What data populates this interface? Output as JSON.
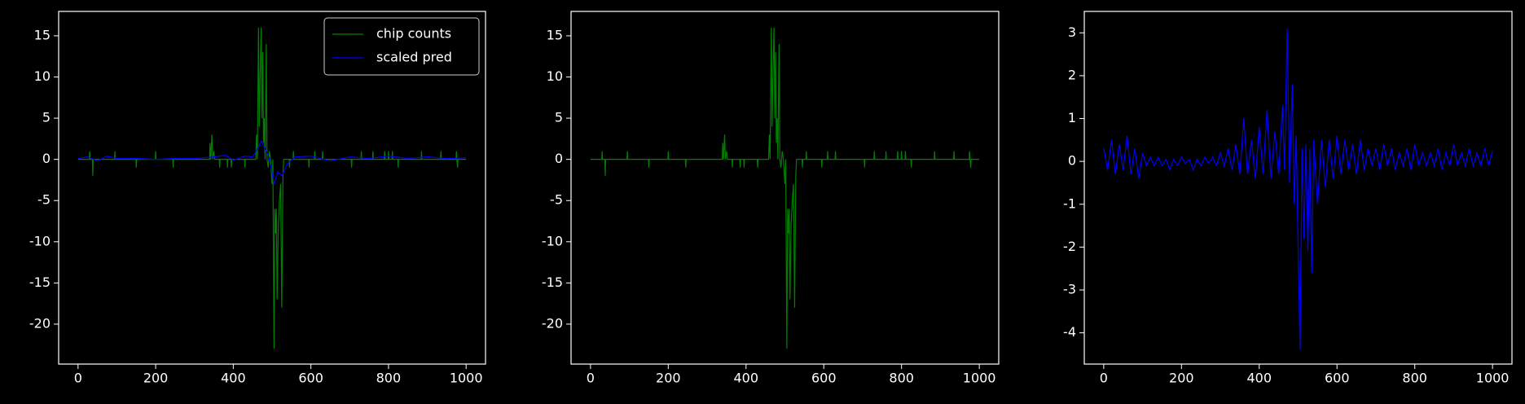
{
  "chart_data": [
    {
      "type": "line",
      "xlim": [
        -50,
        1050
      ],
      "ylim": [
        -24.85,
        17.96
      ],
      "xticks": [
        0,
        200,
        400,
        600,
        800,
        1000
      ],
      "yticks": [
        -20,
        -15,
        -10,
        -5,
        0,
        5,
        10,
        15
      ],
      "legend": "upper right",
      "series": [
        {
          "name": "chip counts",
          "color": "#008000",
          "x": [
            0,
            29,
            30,
            31,
            37,
            38,
            39,
            94,
            95,
            96,
            149,
            150,
            151,
            199,
            200,
            201,
            244,
            245,
            246,
            339,
            340,
            342,
            345,
            347,
            350,
            352,
            364,
            365,
            366,
            384,
            385,
            386,
            394,
            395,
            396,
            429,
            430,
            431,
            458,
            460,
            462,
            465,
            467,
            470,
            472,
            474,
            476,
            478,
            480,
            482,
            485,
            487,
            490,
            493,
            496,
            500,
            502,
            505,
            507,
            509,
            511,
            513,
            516,
            519,
            522,
            525,
            528,
            530,
            544,
            545,
            546,
            554,
            555,
            556,
            594,
            595,
            596,
            609,
            610,
            611,
            629,
            630,
            631,
            704,
            705,
            706,
            729,
            730,
            731,
            759,
            760,
            761,
            789,
            790,
            791,
            799,
            800,
            801,
            809,
            810,
            811,
            824,
            825,
            826,
            884,
            885,
            886,
            934,
            935,
            936,
            974,
            975,
            976,
            978,
            979,
            1000
          ],
          "values": [
            0,
            0,
            1,
            0,
            0,
            -2,
            0,
            0,
            1,
            0,
            0,
            -1,
            0,
            0,
            1,
            0,
            0,
            -1,
            0,
            0,
            2,
            0,
            3,
            0,
            1,
            0,
            0,
            -1,
            0,
            0,
            -1,
            0,
            0,
            -1,
            0,
            0,
            -1,
            0,
            0,
            3,
            0,
            16,
            4,
            12,
            16,
            5,
            13,
            2,
            5,
            0,
            14,
            0,
            -1,
            1,
            0,
            -3,
            0,
            -23,
            -6,
            -9,
            -6,
            -17,
            -8,
            -5,
            -3,
            -18,
            -2,
            0,
            0,
            -1,
            0,
            0,
            1,
            0,
            0,
            -1,
            0,
            0,
            1,
            0,
            0,
            1,
            0,
            0,
            -1,
            0,
            0,
            1,
            0,
            0,
            1,
            0,
            0,
            1,
            0,
            0,
            1,
            0,
            0,
            1,
            0,
            0,
            -1,
            0,
            0,
            1,
            0,
            0,
            1,
            0,
            0,
            1,
            0,
            -1,
            0,
            0
          ]
        },
        {
          "name": "scaled pred",
          "color": "#0000ff",
          "x": [
            0,
            25,
            50,
            75,
            100,
            150,
            200,
            250,
            300,
            350,
            380,
            400,
            430,
            450,
            465,
            472,
            480,
            490,
            500,
            505,
            515,
            525,
            540,
            560,
            600,
            650,
            700,
            750,
            800,
            850,
            900,
            950,
            1000
          ],
          "values": [
            0.1,
            0.3,
            -0.2,
            0.4,
            0.1,
            0.1,
            0,
            0.1,
            0.1,
            0.3,
            0.5,
            -0.1,
            0.4,
            0.3,
            1.5,
            2.2,
            1.5,
            0.5,
            -1.5,
            -3,
            -1.5,
            -2,
            -0.5,
            0.3,
            0.4,
            -0.2,
            0.3,
            0.1,
            0.4,
            0.1,
            0.3,
            0.1,
            0.2
          ]
        }
      ]
    },
    {
      "type": "line",
      "xlim": [
        -50,
        1050
      ],
      "ylim": [
        -24.85,
        17.96
      ],
      "xticks": [
        0,
        200,
        400,
        600,
        800,
        1000
      ],
      "yticks": [
        -20,
        -15,
        -10,
        -5,
        0,
        5,
        10,
        15
      ],
      "series": [
        {
          "color": "#008000",
          "x": [
            0,
            29,
            30,
            31,
            37,
            38,
            39,
            94,
            95,
            96,
            149,
            150,
            151,
            199,
            200,
            201,
            244,
            245,
            246,
            339,
            340,
            342,
            345,
            347,
            350,
            352,
            364,
            365,
            366,
            384,
            385,
            386,
            394,
            395,
            396,
            429,
            430,
            431,
            458,
            460,
            462,
            465,
            467,
            470,
            472,
            474,
            476,
            478,
            480,
            482,
            485,
            487,
            490,
            493,
            496,
            500,
            502,
            505,
            507,
            509,
            511,
            513,
            516,
            519,
            522,
            525,
            528,
            530,
            544,
            545,
            546,
            554,
            555,
            556,
            594,
            595,
            596,
            609,
            610,
            611,
            629,
            630,
            631,
            704,
            705,
            706,
            729,
            730,
            731,
            759,
            760,
            761,
            789,
            790,
            791,
            799,
            800,
            801,
            809,
            810,
            811,
            824,
            825,
            826,
            884,
            885,
            886,
            934,
            935,
            936,
            974,
            975,
            976,
            978,
            979,
            1000
          ],
          "values": [
            0,
            0,
            1,
            0,
            0,
            -2,
            0,
            0,
            1,
            0,
            0,
            -1,
            0,
            0,
            1,
            0,
            0,
            -1,
            0,
            0,
            2,
            0,
            3,
            0,
            1,
            0,
            0,
            -1,
            0,
            0,
            -1,
            0,
            0,
            -1,
            0,
            0,
            -1,
            0,
            0,
            3,
            0,
            16,
            4,
            12,
            16,
            5,
            13,
            2,
            5,
            0,
            14,
            0,
            -1,
            1,
            0,
            -3,
            0,
            -23,
            -6,
            -9,
            -6,
            -17,
            -8,
            -5,
            -3,
            -18,
            -2,
            0,
            0,
            -1,
            0,
            0,
            1,
            0,
            0,
            -1,
            0,
            0,
            1,
            0,
            0,
            1,
            0,
            0,
            -1,
            0,
            0,
            1,
            0,
            0,
            1,
            0,
            0,
            1,
            0,
            0,
            1,
            0,
            0,
            1,
            0,
            0,
            -1,
            0,
            0,
            1,
            0,
            0,
            1,
            0,
            0,
            1,
            0,
            -1,
            0,
            0
          ]
        }
      ]
    },
    {
      "type": "line",
      "xlim": [
        -50,
        1050
      ],
      "ylim": [
        -4.73,
        3.5
      ],
      "xticks": [
        0,
        200,
        400,
        600,
        800,
        1000
      ],
      "yticks": [
        -4,
        -3,
        -2,
        -1,
        0,
        1,
        2,
        3
      ],
      "series": [
        {
          "color": "#0000ff",
          "x": [
            0,
            10,
            20,
            30,
            40,
            50,
            60,
            70,
            80,
            90,
            100,
            110,
            120,
            130,
            140,
            150,
            160,
            170,
            180,
            190,
            200,
            210,
            220,
            230,
            240,
            250,
            260,
            270,
            280,
            290,
            300,
            310,
            320,
            330,
            340,
            350,
            360,
            370,
            380,
            390,
            400,
            410,
            420,
            430,
            440,
            450,
            460,
            465,
            472,
            478,
            485,
            490,
            495,
            500,
            505,
            510,
            515,
            520,
            525,
            530,
            535,
            540,
            550,
            560,
            570,
            580,
            590,
            600,
            610,
            620,
            630,
            640,
            650,
            660,
            670,
            680,
            690,
            700,
            710,
            720,
            730,
            740,
            750,
            760,
            770,
            780,
            790,
            800,
            810,
            820,
            830,
            840,
            850,
            860,
            870,
            880,
            890,
            900,
            910,
            920,
            930,
            940,
            950,
            960,
            970,
            980,
            990,
            1000
          ],
          "values": [
            0.3,
            -0.2,
            0.5,
            -0.3,
            0.4,
            -0.2,
            0.6,
            -0.3,
            0.3,
            -0.4,
            0.2,
            -0.1,
            0.1,
            -0.1,
            0.1,
            -0.1,
            0.05,
            -0.2,
            0.05,
            -0.1,
            0.1,
            -0.05,
            0.05,
            -0.2,
            0.05,
            -0.1,
            0.1,
            -0.05,
            0.1,
            -0.1,
            0.2,
            -0.1,
            0.3,
            -0.2,
            0.4,
            -0.3,
            1.0,
            -0.3,
            0.5,
            -0.4,
            0.8,
            -0.3,
            1.2,
            -0.4,
            0.7,
            -0.3,
            1.3,
            -0.2,
            3.1,
            -0.5,
            1.8,
            -1,
            0.6,
            -2,
            -4.4,
            0.3,
            -1.8,
            0.4,
            -2.1,
            0.3,
            -2.6,
            0.5,
            -1,
            0.5,
            -0.6,
            0.5,
            -0.4,
            0.6,
            -0.3,
            0.5,
            -0.2,
            0.4,
            -0.3,
            0.5,
            -0.2,
            0.3,
            -0.1,
            0.3,
            -0.2,
            0.4,
            -0.1,
            0.3,
            -0.2,
            0.2,
            -0.1,
            0.3,
            -0.2,
            0.4,
            -0.1,
            0.2,
            -0.1,
            0.2,
            -0.1,
            0.3,
            -0.2,
            0.2,
            -0.1,
            0.4,
            -0.1,
            0.2,
            -0.1,
            0.3,
            -0.1,
            0.2,
            -0.1,
            0.3,
            -0.1,
            0.25
          ]
        }
      ]
    }
  ]
}
